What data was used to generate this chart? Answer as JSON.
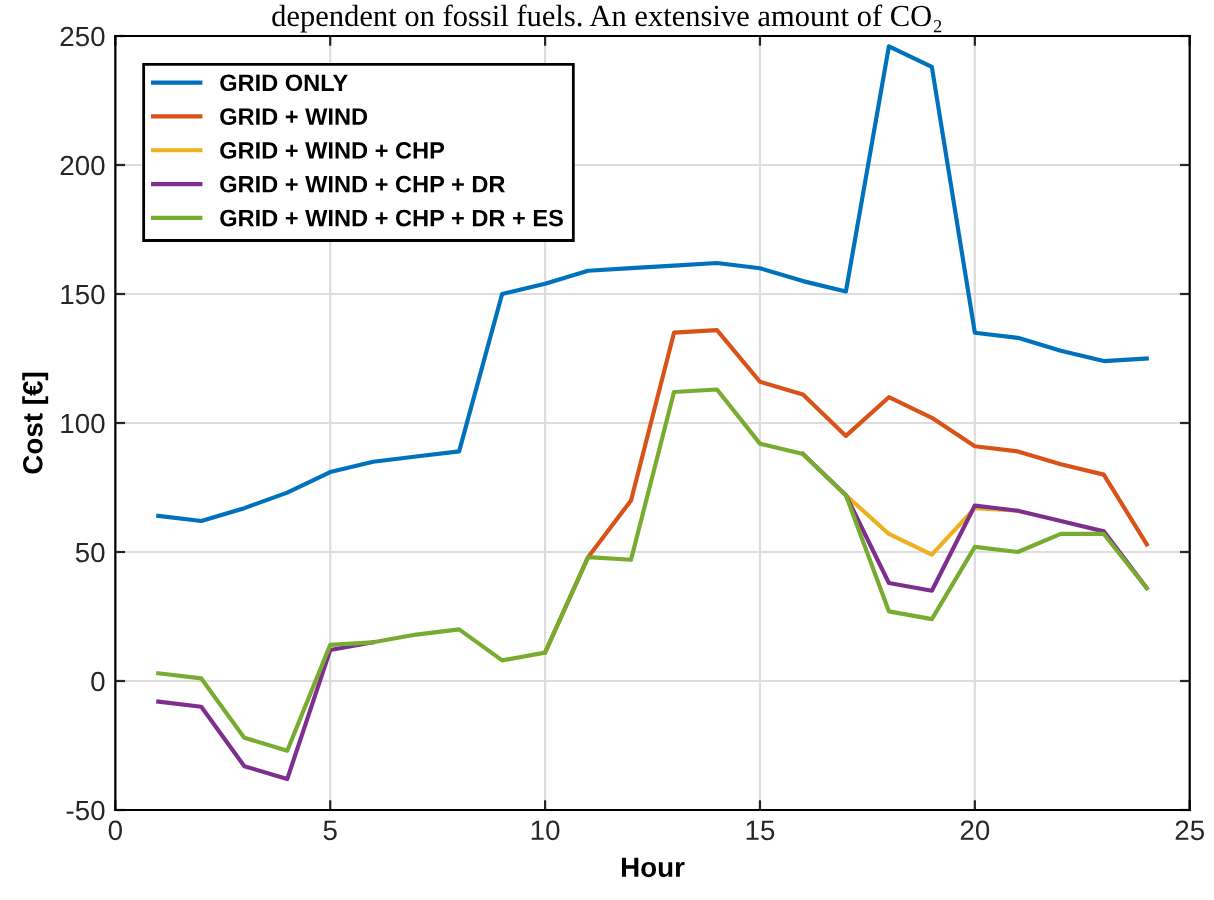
{
  "chart_data": {
    "type": "line",
    "xlabel": "Hour",
    "ylabel": "Cost [€]",
    "annotations": [
      "dependent on fossil fuels. An extensive amount of CO₂"
    ],
    "x": [
      1,
      2,
      3,
      4,
      5,
      6,
      7,
      8,
      9,
      10,
      11,
      12,
      13,
      14,
      15,
      16,
      17,
      18,
      19,
      20,
      21,
      22,
      23,
      24
    ],
    "series": [
      {
        "name": "GRID ONLY",
        "color": "#0072bd",
        "values": [
          64,
          62,
          67,
          73,
          81,
          85,
          87,
          89,
          150,
          154,
          159,
          160,
          161,
          162,
          160,
          155,
          151,
          246,
          238,
          135,
          133,
          128,
          124,
          125
        ]
      },
      {
        "name": "GRID + WIND",
        "color": "#d95319",
        "values": [
          null,
          null,
          null,
          null,
          null,
          null,
          null,
          null,
          null,
          11,
          48,
          70,
          135,
          136,
          116,
          111,
          95,
          110,
          102,
          91,
          89,
          84,
          80,
          53
        ]
      },
      {
        "name": "GRID + WIND + CHP",
        "color": "#edb120",
        "values": [
          null,
          null,
          null,
          null,
          null,
          null,
          null,
          null,
          null,
          null,
          null,
          null,
          null,
          null,
          null,
          null,
          72,
          57,
          49,
          67,
          66,
          null,
          null,
          null
        ]
      },
      {
        "name": "GRID + WIND + CHP + DR",
        "color": "#7e2f8e",
        "values": [
          -8,
          -10,
          -33,
          -38,
          12,
          15,
          null,
          null,
          null,
          null,
          null,
          null,
          null,
          null,
          null,
          88,
          72,
          38,
          35,
          68,
          66,
          62,
          58,
          36
        ]
      },
      {
        "name": "GRID + WIND + CHP + DR + ES",
        "color": "#77ac30",
        "values": [
          3,
          1,
          -22,
          -27,
          14,
          15,
          18,
          20,
          8,
          11,
          48,
          47,
          112,
          113,
          92,
          88,
          72,
          27,
          24,
          52,
          50,
          57,
          57,
          36
        ]
      }
    ],
    "xlim": [
      0,
      25
    ],
    "xticks": [
      0,
      5,
      10,
      15,
      20,
      25
    ],
    "ylim": [
      -50,
      250
    ],
    "yticks": [
      -50,
      0,
      50,
      100,
      150,
      200,
      250
    ],
    "grid": true,
    "legend": "top left",
    "marker": "none",
    "line_style": "solid"
  }
}
